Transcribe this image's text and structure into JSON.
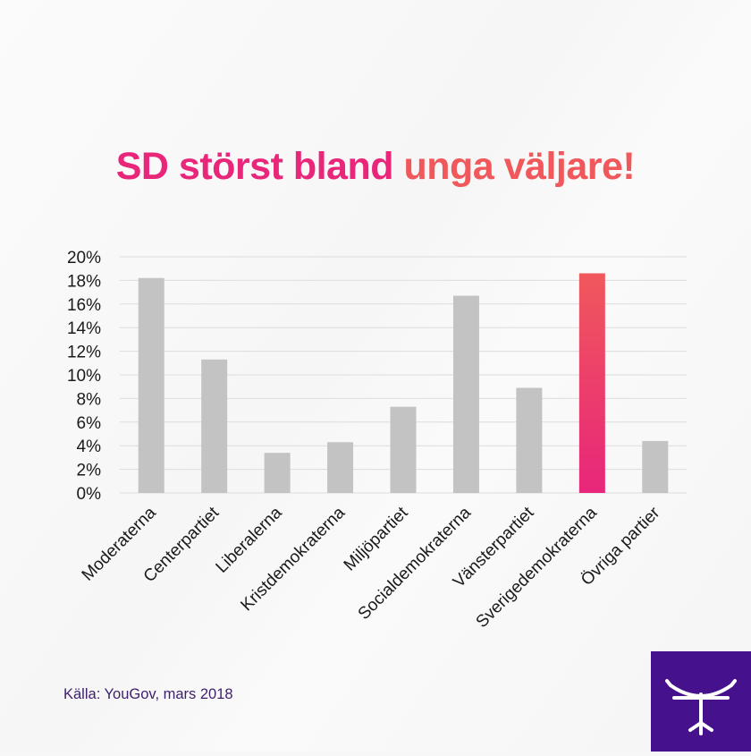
{
  "title": {
    "part1": "SD störst bland",
    "part2": "unga väljare!"
  },
  "source": "Källa: YouGov, mars 2018",
  "colors": {
    "title_pink": "#e8267a",
    "title_coral": "#f0585c",
    "bar_default": "#c3c3c3",
    "bar_highlight_top": "#f0585c",
    "bar_highlight_bottom": "#e8267a",
    "logo_bg": "#46118c"
  },
  "logo": {
    "icon": "bow-and-arrow-icon"
  },
  "chart_data": {
    "type": "bar",
    "categories": [
      "Moderaterna",
      "Centerpartiet",
      "Liberalerna",
      "Kristdemokraterna",
      "Miljöpartiet",
      "Socialdemokraterna",
      "Vänsterpartiet",
      "Sverigedemokraterna",
      "Övriga partier"
    ],
    "values": [
      18.2,
      11.3,
      3.4,
      4.3,
      7.3,
      16.7,
      8.9,
      18.6,
      4.4
    ],
    "highlight_index": 7,
    "ylim": [
      0,
      20
    ],
    "yticks": [
      "0%",
      "2%",
      "4%",
      "6%",
      "8%",
      "10%",
      "12%",
      "14%",
      "16%",
      "18%",
      "20%"
    ],
    "grid": true,
    "legend": "none"
  }
}
